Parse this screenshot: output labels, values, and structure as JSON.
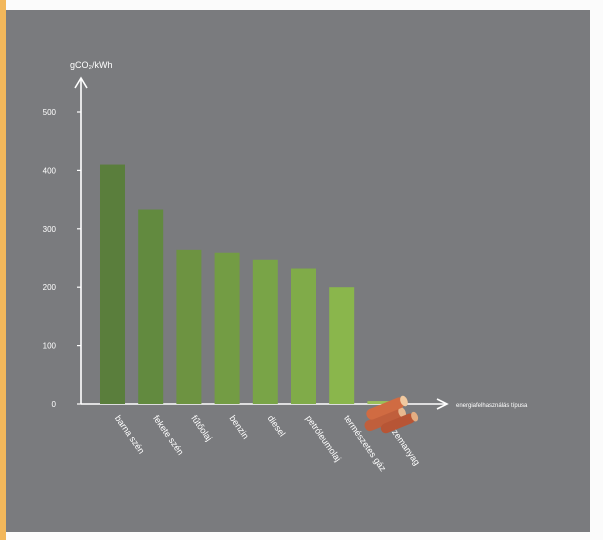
{
  "chart_data": {
    "type": "bar",
    "ylabel": "gCO₂/kWh",
    "xlabel": "energiafelhasználás típusa",
    "ylim": [
      0,
      560
    ],
    "yticks": [
      0,
      100,
      200,
      300,
      400,
      500
    ],
    "categories": [
      "barna szén",
      "fekete szén",
      "fűtőolaj",
      "benzin",
      "diesel",
      "petróleumolaj",
      "természetes gáz",
      "bioüzemanyag"
    ],
    "values": [
      410,
      333,
      264,
      259,
      247,
      232,
      200,
      5
    ],
    "colors": [
      "#5a7e3c",
      "#628a3f",
      "#6d9341",
      "#739c44",
      "#79a447",
      "#80ab49",
      "#8ab64c",
      "#9bc15a"
    ],
    "axis_color": "#ffffff",
    "text_color": "#ffffff",
    "grid": false,
    "legend": "none",
    "annotations": [
      {
        "icon": "firewood-icon",
        "near": "bioüzemanyag"
      }
    ]
  }
}
